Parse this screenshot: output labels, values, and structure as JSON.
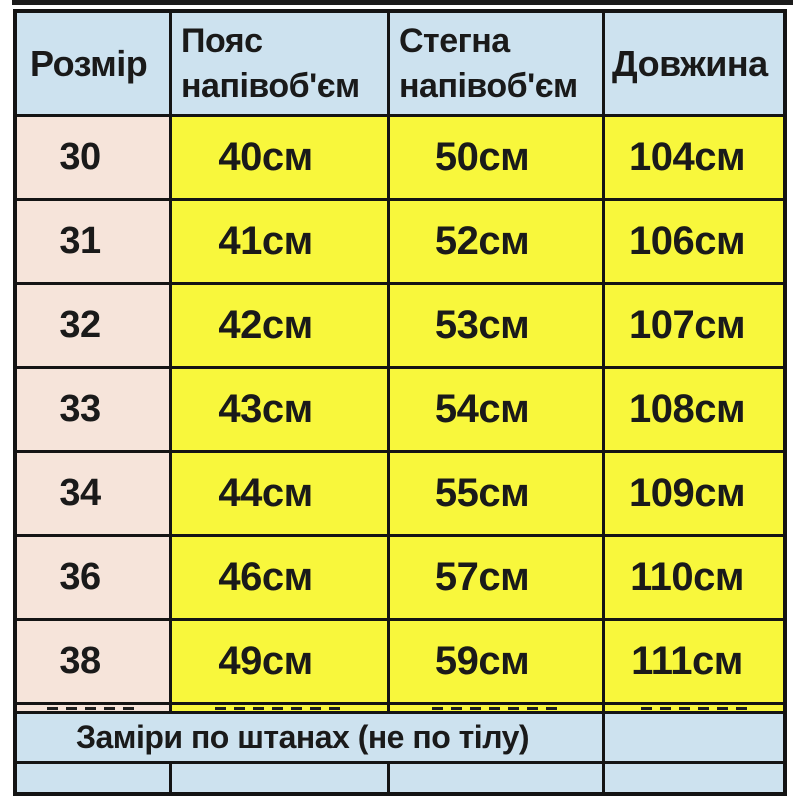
{
  "header": {
    "size": "Розмір",
    "waist": [
      "Пояс",
      "напівоб'єм"
    ],
    "hips": [
      "Стегна",
      "напівоб'єм"
    ],
    "length": "Довжина"
  },
  "footer_note": "Заміри по штанах (не по тілу)",
  "colors": {
    "header_bg": "#cde2ef",
    "size_column_bg": "#f6e4da",
    "value_cell_bg": "#f8f73c",
    "footer_bg": "#cde2ef",
    "border": "#141414",
    "text": "#1a1a1a",
    "page_bg": "#ffffff"
  },
  "chart_data": {
    "type": "table",
    "title": "",
    "columns": [
      "Розмір",
      "Пояс напівоб'єм",
      "Стегна напівоб'єм",
      "Довжина"
    ],
    "rows": [
      [
        "30",
        "40см",
        "50см",
        "104см"
      ],
      [
        "31",
        "41см",
        "52см",
        "106см"
      ],
      [
        "32",
        "42см",
        "53см",
        "107см"
      ],
      [
        "33",
        "43см",
        "54см",
        "108см"
      ],
      [
        "34",
        "44см",
        "55см",
        "109см"
      ],
      [
        "36",
        "46см",
        "57см",
        "110см"
      ],
      [
        "38",
        "49см",
        "59см",
        "111см"
      ]
    ],
    "footnote": "Заміри по штанах (не по тілу)",
    "units": "см"
  }
}
